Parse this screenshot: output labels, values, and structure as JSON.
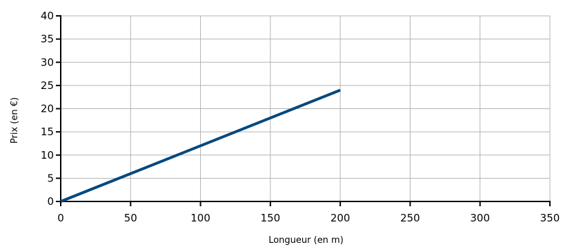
{
  "chart_data": {
    "type": "line",
    "title": "",
    "xlabel": "Longueur (en m)",
    "ylabel": "Prix (en €)",
    "xlim": [
      0,
      350
    ],
    "ylim": [
      0,
      40
    ],
    "x_ticks": [
      0,
      50,
      100,
      150,
      200,
      250,
      300,
      350
    ],
    "y_ticks": [
      0,
      5,
      10,
      15,
      20,
      25,
      30,
      35,
      40
    ],
    "x_tick_labels": [
      "0",
      "50",
      "100",
      "150",
      "200",
      "250",
      "300",
      "350"
    ],
    "y_tick_labels": [
      "0",
      "5",
      "10",
      "15",
      "20",
      "25",
      "30",
      "35",
      "40"
    ],
    "grid": true,
    "series": [
      {
        "x": [
          0,
          200
        ],
        "y": [
          0,
          24
        ],
        "color": "#00487e"
      }
    ]
  }
}
